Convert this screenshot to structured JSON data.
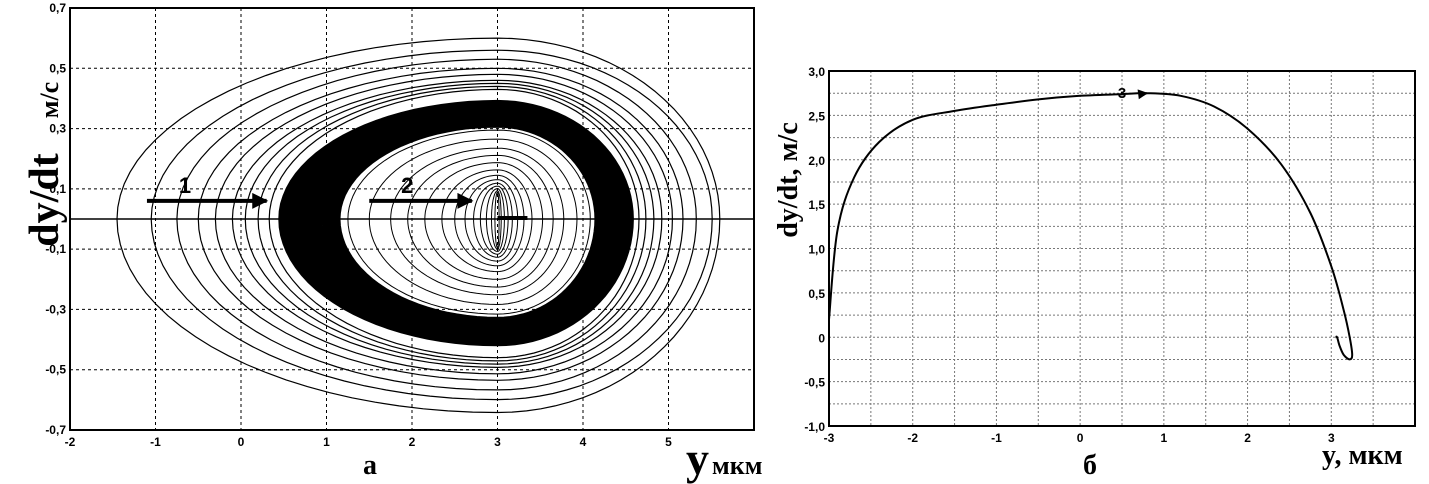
{
  "chart_data": [
    {
      "type": "line",
      "panel_label": "а",
      "ylabel_main": "dy/dt",
      "ylabel_unit": "м/с",
      "xlabel_main": "y",
      "xlabel_unit": "мкм",
      "xlim": [
        -2,
        6
      ],
      "ylim": [
        -0.7,
        0.7
      ],
      "x_ticks": [
        "-2",
        "-1",
        "0",
        "1",
        "2",
        "3",
        "4",
        "5"
      ],
      "y_ticks": [
        "0,7",
        "0,5",
        "0,3",
        "0,1",
        "-0,1",
        "-0,3",
        "-0,5",
        "-0,7"
      ],
      "grid": true,
      "zero_line": 0,
      "center": [
        3,
        0
      ],
      "outer_loops_x_left": [
        -1.45,
        -1.05,
        -0.75,
        -0.5,
        -0.3,
        -0.1,
        0.05,
        0.2,
        0.33
      ],
      "dense_band_x_left": [
        0.45,
        1.15
      ],
      "inner_loops_x_left": [
        1.25,
        1.5,
        1.75,
        1.95,
        2.15,
        2.35,
        2.5,
        2.62,
        2.72,
        2.8,
        2.87,
        2.93,
        2.97
      ],
      "outer_loop_peak_dydt": [
        0.6,
        0.56,
        0.53,
        0.5,
        0.48,
        0.46,
        0.45,
        0.44,
        0.43
      ],
      "annotations": [
        {
          "label": "1",
          "from": [
            -1.1,
            0.06
          ],
          "to": [
            0.3,
            0.06
          ]
        },
        {
          "label": "2",
          "from": [
            1.5,
            0.06
          ],
          "to": [
            2.7,
            0.06
          ]
        }
      ]
    },
    {
      "type": "line",
      "panel_label": "б",
      "ylabel": "dy/dt, м/с",
      "xlabel": "y, мкм",
      "xlim": [
        -3,
        4
      ],
      "ylim": [
        -1.0,
        3.0
      ],
      "x_ticks": [
        "-3",
        "-2",
        "-1",
        "0",
        "1",
        "2",
        "3"
      ],
      "y_ticks": [
        "3,0",
        "2,5",
        "2,0",
        "1,5",
        "1,0",
        "0,5",
        "0",
        "-0,5",
        "-1,0"
      ],
      "grid": true,
      "series": [
        {
          "x": [
            -3.0,
            -2.9,
            -2.7,
            -2.4,
            -2.0,
            -1.5,
            -1.0,
            -0.5,
            0.0,
            0.5,
            0.8,
            1.2,
            1.6,
            2.0,
            2.4,
            2.75,
            3.0,
            3.15,
            3.22,
            3.25,
            3.22,
            3.15,
            3.1,
            3.07,
            3.05
          ],
          "y": [
            0.2,
            1.2,
            1.8,
            2.2,
            2.45,
            2.55,
            2.62,
            2.68,
            2.72,
            2.74,
            2.75,
            2.72,
            2.6,
            2.35,
            1.95,
            1.4,
            0.8,
            0.3,
            0.0,
            -0.2,
            -0.25,
            -0.2,
            -0.1,
            0.0,
            0.0
          ]
        }
      ],
      "annotations": [
        {
          "label": "3",
          "at": [
            0.5,
            2.74
          ],
          "arrow_to": [
            0.8,
            2.75
          ]
        }
      ]
    }
  ]
}
